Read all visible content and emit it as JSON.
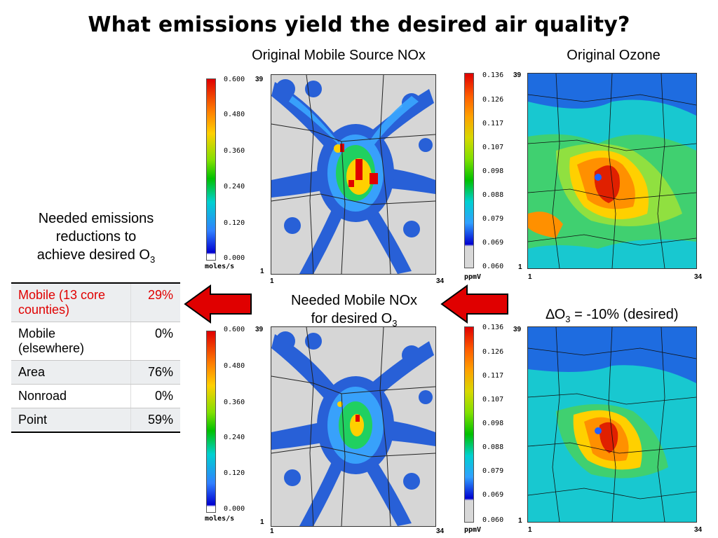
{
  "title": "What emissions yield the desired air quality?",
  "labels": {
    "orig_nox": "Original Mobile Source NOx",
    "orig_ozone": "Original Ozone",
    "needed_nox_line1": "Needed Mobile NOx",
    "needed_nox_line2": "for desired O",
    "needed_nox_sub": "3",
    "delta_prefix": "∆O",
    "delta_sub": "3",
    "delta_suffix": " = -10% (desired)",
    "needed_red_line1": "Needed emissions",
    "needed_red_line2": "reductions to",
    "needed_red_line3": "achieve desired O",
    "needed_red_sub": "3"
  },
  "nox_scale": {
    "ticks": [
      "0.600",
      "0.480",
      "0.360",
      "0.240",
      "0.120",
      "0.000"
    ],
    "unit": "moles/s"
  },
  "ozone_scale": {
    "ticks": [
      "0.136",
      "0.126",
      "0.117",
      "0.107",
      "0.098",
      "0.088",
      "0.079",
      "0.069",
      "0.060"
    ],
    "unit": "ppmV"
  },
  "grid_axis": {
    "top": "39",
    "bottom": "1",
    "left": "1",
    "right": "34"
  },
  "reductions_table": [
    {
      "source": "Mobile (13 core counties)",
      "value": "29%"
    },
    {
      "source": "Mobile (elsewhere)",
      "value": "0%"
    },
    {
      "source": "Area",
      "value": "76%"
    },
    {
      "source": "Nonroad",
      "value": "0%"
    },
    {
      "source": "Point",
      "value": "59%"
    }
  ],
  "colors": {
    "arrow": "#e00000",
    "highlight_text": "#e00000",
    "map_bg_nox": "#d6d6d6",
    "ozone_low": "#1e6ce0"
  }
}
